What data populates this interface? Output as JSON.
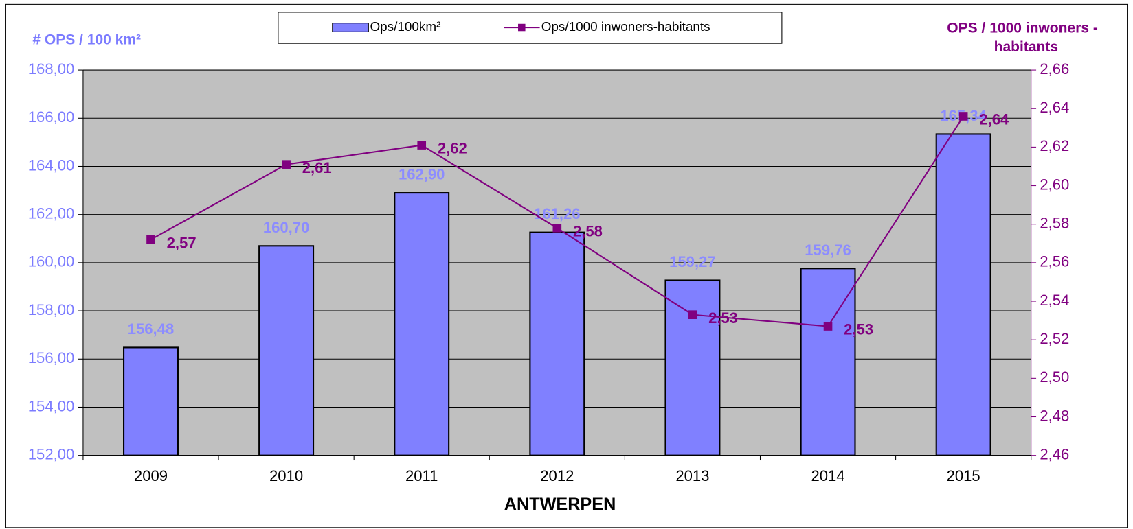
{
  "chart_data": {
    "type": "bar_line",
    "xlabel": "ANTWERPEN",
    "ylabel": "# OPS / 100 km²",
    "y2label": [
      "OPS / 1000 inwoners -",
      "habitants"
    ],
    "categories": [
      "2009",
      "2010",
      "2011",
      "2012",
      "2013",
      "2014",
      "2015"
    ],
    "series": [
      {
        "name": "Ops/100km²",
        "kind": "bar",
        "color": "#8080ff",
        "values": [
          156.48,
          160.7,
          162.9,
          161.26,
          159.27,
          159.76,
          165.34
        ],
        "value_labels": [
          "156,48",
          "160,70",
          "162,90",
          "161,26",
          "159,27",
          "159,76",
          "165,34"
        ]
      },
      {
        "name": "Ops/1000 inwoners-habitants",
        "kind": "line",
        "axis": "y2",
        "color": "#800080",
        "values": [
          2.572,
          2.611,
          2.621,
          2.578,
          2.533,
          2.527,
          2.636
        ],
        "value_labels": [
          "2,57",
          "2,61",
          "2,62",
          "2,58",
          "2,53",
          "2,53",
          "2,64"
        ]
      }
    ],
    "ylim": [
      152,
      168
    ],
    "yticks": [
      {
        "value": 152,
        "label": "152,00"
      },
      {
        "value": 154,
        "label": "154,00"
      },
      {
        "value": 156,
        "label": "156,00"
      },
      {
        "value": 158,
        "label": "158,00"
      },
      {
        "value": 160,
        "label": "160,00"
      },
      {
        "value": 162,
        "label": "162,00"
      },
      {
        "value": 164,
        "label": "164,00"
      },
      {
        "value": 166,
        "label": "166,00"
      },
      {
        "value": 168,
        "label": "168,00"
      }
    ],
    "y2lim": [
      2.46,
      2.66
    ],
    "y2ticks": [
      {
        "value": 2.46,
        "label": "2,46"
      },
      {
        "value": 2.48,
        "label": "2,48"
      },
      {
        "value": 2.5,
        "label": "2,50"
      },
      {
        "value": 2.52,
        "label": "2,52"
      },
      {
        "value": 2.54,
        "label": "2,54"
      },
      {
        "value": 2.56,
        "label": "2,56"
      },
      {
        "value": 2.58,
        "label": "2,58"
      },
      {
        "value": 2.6,
        "label": "2,60"
      },
      {
        "value": 2.62,
        "label": "2,62"
      },
      {
        "value": 2.64,
        "label": "2,64"
      },
      {
        "value": 2.66,
        "label": "2,66"
      }
    ],
    "grid": true,
    "legend": "top"
  }
}
